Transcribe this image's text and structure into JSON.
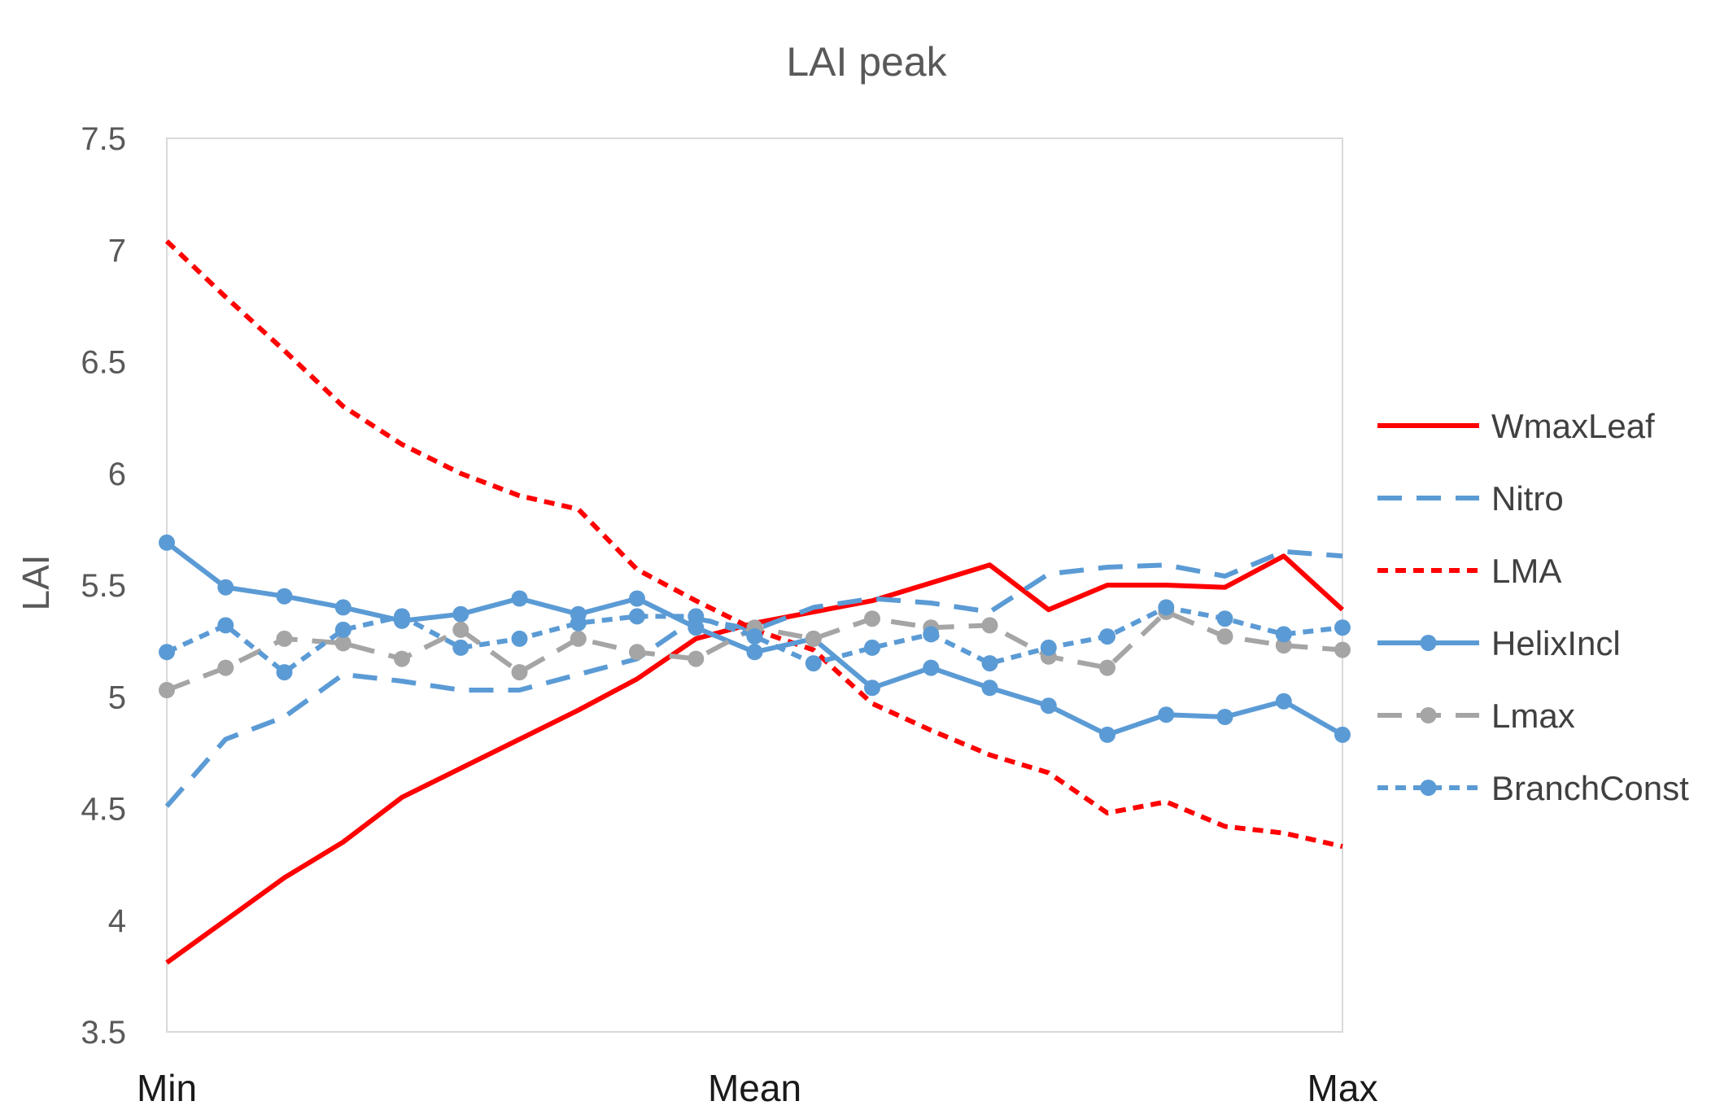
{
  "chart_data": {
    "type": "line",
    "title": "LAI peak",
    "xlabel": "",
    "ylabel": "LAI",
    "ylim": [
      3.5,
      7.5
    ],
    "yticks": [
      "3.5",
      "4",
      "4.5",
      "5",
      "5.5",
      "6",
      "6.5",
      "7",
      "7.5"
    ],
    "xtick_labels": [
      "Min",
      "Mean",
      "Max"
    ],
    "x": [
      0,
      1,
      2,
      3,
      4,
      5,
      6,
      7,
      8,
      9,
      10,
      11,
      12,
      13,
      14,
      15,
      16,
      17,
      18,
      19,
      20
    ],
    "grid": false,
    "legend_position": "right",
    "series": [
      {
        "name": "WmaxLeaf",
        "color": "#ff0000",
        "dash": "solid",
        "marker": false,
        "values": [
          3.81,
          4.0,
          4.19,
          4.35,
          4.55,
          4.68,
          4.81,
          4.94,
          5.08,
          5.26,
          5.33,
          5.38,
          5.43,
          5.51,
          5.59,
          5.39,
          5.5,
          5.5,
          5.49,
          5.63,
          5.39
        ]
      },
      {
        "name": "Nitro",
        "color": "#5b9bd5",
        "dash": "dash",
        "marker": false,
        "values": [
          4.51,
          4.81,
          4.91,
          5.1,
          5.07,
          5.03,
          5.03,
          5.1,
          5.17,
          5.35,
          5.3,
          5.4,
          5.44,
          5.42,
          5.38,
          5.55,
          5.58,
          5.59,
          5.54,
          5.65,
          5.63
        ]
      },
      {
        "name": "LMA",
        "color": "#ff0000",
        "dash": "dot",
        "marker": false,
        "values": [
          7.04,
          6.79,
          6.55,
          6.3,
          6.13,
          6.0,
          5.9,
          5.84,
          5.57,
          5.43,
          5.3,
          5.21,
          4.97,
          4.85,
          4.74,
          4.66,
          4.48,
          4.53,
          4.42,
          4.39,
          4.33
        ]
      },
      {
        "name": "HelixIncl",
        "color": "#5b9bd5",
        "dash": "solid",
        "marker": true,
        "values": [
          5.69,
          5.49,
          5.45,
          5.4,
          5.34,
          5.37,
          5.44,
          5.37,
          5.44,
          5.31,
          5.2,
          5.26,
          5.04,
          5.13,
          5.04,
          4.96,
          4.83,
          4.92,
          4.91,
          4.98,
          4.83
        ]
      },
      {
        "name": "Lmax",
        "color": "#a5a5a5",
        "dash": "dash",
        "marker": true,
        "values": [
          5.03,
          5.13,
          5.26,
          5.24,
          5.17,
          5.3,
          5.11,
          5.26,
          5.2,
          5.17,
          5.31,
          5.26,
          5.35,
          5.31,
          5.32,
          5.18,
          5.13,
          5.38,
          5.27,
          5.23,
          5.21
        ]
      },
      {
        "name": "BranchConst",
        "color": "#5b9bd5",
        "dash": "dot",
        "marker": true,
        "values": [
          5.2,
          5.32,
          5.11,
          5.3,
          5.36,
          5.22,
          5.26,
          5.33,
          5.36,
          5.36,
          5.27,
          5.15,
          5.22,
          5.28,
          5.15,
          5.22,
          5.27,
          5.4,
          5.35,
          5.28,
          5.31
        ]
      }
    ]
  }
}
